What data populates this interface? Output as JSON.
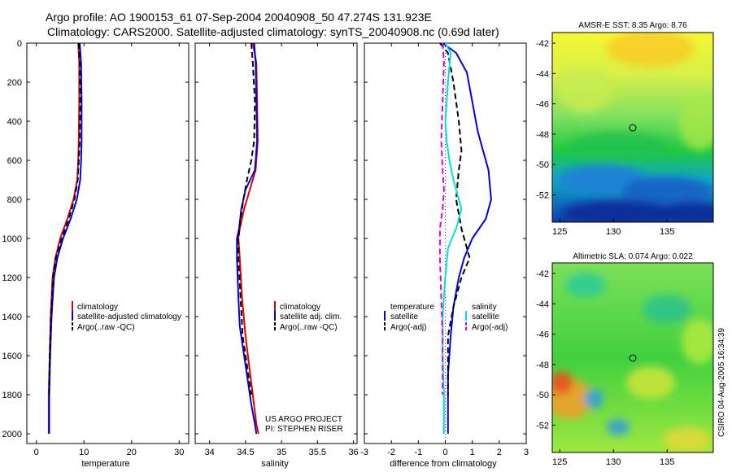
{
  "title_line1": "Argo profile: AO 1900153_61 07-Sep-2004 20040908_50 47.274S 131.923E",
  "title_line2": "Climatology: CARS2000. Satellite-adjusted climatology: synTS_20040908.nc (0.69d later)",
  "side_stamp": "CSIRO 04-Aug-2005 16:34:39",
  "credit_line1": "US ARGO PROJECT",
  "credit_line2": "PI: STEPHEN RISER",
  "colors": {
    "red": "#e00000",
    "blue": "#0000e0",
    "black": "#000000",
    "cyan": "#00e0e0",
    "magenta": "#e000e0"
  },
  "chart_data": [
    {
      "type": "line",
      "panel": "temperature",
      "xlabel": "temperature",
      "ylabel": "",
      "xlim": [
        -2,
        32
      ],
      "ylim": [
        2050,
        0
      ],
      "xticks": [
        0,
        10,
        20,
        30
      ],
      "yticks": [
        0,
        200,
        400,
        600,
        800,
        1000,
        1200,
        1400,
        1600,
        1800,
        2000
      ],
      "legend": [
        "climatology",
        "satellite-adjusted climatology",
        "Argo(..raw -QC)"
      ],
      "series": [
        {
          "name": "climatology",
          "color": "red",
          "dash": "solid",
          "x": [
            8.8,
            9.0,
            9.0,
            8.9,
            8.8,
            8.6,
            7.8,
            6.5,
            5.0,
            4.0,
            3.4,
            3.0,
            2.8,
            2.6,
            2.6
          ],
          "y": [
            0,
            100,
            300,
            500,
            600,
            700,
            800,
            900,
            1000,
            1100,
            1200,
            1400,
            1600,
            1800,
            2000
          ]
        },
        {
          "name": "satellite-adjusted climatology",
          "color": "blue",
          "dash": "solid",
          "x": [
            9.1,
            9.4,
            9.5,
            9.5,
            9.4,
            9.2,
            8.5,
            7.2,
            5.6,
            4.4,
            3.7,
            3.2,
            2.9,
            2.7,
            2.7
          ],
          "y": [
            0,
            100,
            300,
            500,
            600,
            700,
            800,
            900,
            1000,
            1100,
            1200,
            1400,
            1600,
            1800,
            2000
          ]
        },
        {
          "name": "Argo(..raw -QC)",
          "color": "black",
          "dash": "dashed",
          "x": [
            8.9,
            9.1,
            9.2,
            9.1,
            8.9,
            8.7,
            8.0,
            6.8,
            5.3,
            4.1,
            3.5,
            3.1,
            2.8,
            2.7
          ],
          "y": [
            0,
            100,
            300,
            500,
            600,
            700,
            800,
            900,
            1000,
            1100,
            1200,
            1400,
            1600,
            1800
          ]
        }
      ]
    },
    {
      "type": "line",
      "panel": "salinity",
      "xlabel": "salinity",
      "ylabel": "",
      "xlim": [
        33.8,
        36.05
      ],
      "ylim": [
        2050,
        0
      ],
      "xticks": [
        34,
        34.5,
        35,
        35.5,
        36
      ],
      "xticklabels": [
        "34",
        "34.5",
        "35",
        "35.5",
        "36"
      ],
      "legend": [
        "climatology",
        "satellite adj. clim.",
        "Argo(..raw -QC)"
      ],
      "series": [
        {
          "name": "climatology",
          "color": "red",
          "dash": "solid",
          "x": [
            34.6,
            34.65,
            34.66,
            34.67,
            34.64,
            34.56,
            34.48,
            34.42,
            34.4,
            34.42,
            34.45,
            34.5,
            34.55,
            34.6,
            34.65,
            34.68
          ],
          "y": [
            0,
            100,
            300,
            500,
            650,
            750,
            850,
            950,
            1000,
            1100,
            1300,
            1500,
            1650,
            1800,
            1950,
            2000
          ]
        },
        {
          "name": "satellite adj. clim.",
          "color": "blue",
          "dash": "solid",
          "x": [
            34.62,
            34.64,
            34.65,
            34.66,
            34.63,
            34.5,
            34.44,
            34.41,
            34.38,
            34.38,
            34.4,
            34.42,
            34.46,
            34.52,
            34.58,
            34.63,
            34.65
          ],
          "y": [
            0,
            100,
            300,
            500,
            650,
            750,
            850,
            950,
            1000,
            1100,
            1300,
            1450,
            1550,
            1700,
            1850,
            1950,
            2000
          ]
        },
        {
          "name": "Argo(..raw -QC)",
          "color": "black",
          "dash": "dashed",
          "x": [
            34.58,
            34.6,
            34.63,
            34.62,
            34.58,
            34.52,
            34.47,
            34.43,
            34.4,
            34.4,
            34.43,
            34.46,
            34.52,
            34.58
          ],
          "y": [
            0,
            100,
            300,
            500,
            600,
            700,
            800,
            900,
            1000,
            1100,
            1300,
            1500,
            1650,
            1800
          ]
        }
      ]
    },
    {
      "type": "line",
      "panel": "difference",
      "xlabel": "difference from climatology",
      "ylabel": "",
      "xlim": [
        -3,
        3
      ],
      "ylim": [
        2050,
        0
      ],
      "xticks": [
        -3,
        -2,
        -1,
        0,
        1,
        2,
        3
      ],
      "legend_left": [
        "temperature",
        "satellite",
        "Argo(-adj)"
      ],
      "legend_right": [
        "salinity",
        "satellite",
        "Argo(-adj)"
      ],
      "series": [
        {
          "name": "temperature satellite",
          "color": "blue",
          "dash": "solid",
          "x": [
            -0.1,
            0.4,
            0.8,
            1.0,
            1.2,
            1.4,
            1.6,
            1.7,
            1.5,
            1.0,
            0.7,
            0.5,
            0.3,
            0.2,
            0.1,
            0.1,
            0.1
          ],
          "y": [
            0,
            50,
            150,
            300,
            450,
            550,
            650,
            800,
            900,
            1000,
            1100,
            1200,
            1350,
            1500,
            1700,
            1900,
            2000
          ]
        },
        {
          "name": "temperature Argo(-adj)",
          "color": "black",
          "dash": "dashed",
          "x": [
            -0.2,
            0.1,
            0.3,
            0.5,
            0.6,
            0.5,
            0.4,
            0.6,
            0.9,
            0.6,
            0.3,
            0.1,
            0.1,
            0.1
          ],
          "y": [
            0,
            50,
            200,
            400,
            550,
            650,
            800,
            950,
            1100,
            1200,
            1350,
            1500,
            1650,
            1800
          ]
        },
        {
          "name": "salinity satellite",
          "color": "cyan",
          "dash": "solid",
          "x": [
            0.0,
            0.2,
            0.1,
            0.0,
            0.05,
            0.15,
            0.3,
            0.5,
            0.6,
            0.4,
            0.1,
            0.0,
            -0.1,
            -0.1,
            -0.05,
            -0.05
          ],
          "y": [
            0,
            50,
            200,
            400,
            500,
            600,
            700,
            800,
            850,
            950,
            1050,
            1200,
            1400,
            1600,
            1800,
            2000
          ]
        },
        {
          "name": "salinity Argo(-adj)",
          "color": "magenta",
          "dash": "dashed",
          "x": [
            -0.1,
            -0.05,
            -0.1,
            -0.15,
            -0.1,
            -0.05,
            -0.1,
            -0.2,
            -0.2,
            -0.15,
            -0.1,
            -0.1
          ],
          "y": [
            0,
            100,
            300,
            500,
            650,
            750,
            850,
            950,
            1100,
            1300,
            1500,
            1800
          ]
        }
      ]
    },
    {
      "type": "heatmap",
      "panel": "map-top",
      "title": "AMSR-E SST: 8.35 Argo: 8.76",
      "xlim": [
        124.3,
        139.3
      ],
      "ylim": [
        -53.8,
        -41.3
      ],
      "xticks": [
        125,
        130,
        135
      ],
      "yticks": [
        -42,
        -44,
        -46,
        -48,
        -50,
        -52
      ],
      "marker": {
        "lon": 131.923,
        "lat": -47.274
      }
    },
    {
      "type": "heatmap",
      "panel": "map-bottom",
      "title": "Altimetric SLA: 0.074 Argo: 0.022",
      "xlim": [
        124.3,
        139.3
      ],
      "ylim": [
        -53.8,
        -41.3
      ],
      "xticks": [
        125,
        130,
        135
      ],
      "yticks": [
        -42,
        -44,
        -46,
        -48,
        -50,
        -52
      ],
      "marker": {
        "lon": 131.923,
        "lat": -47.274
      }
    }
  ]
}
